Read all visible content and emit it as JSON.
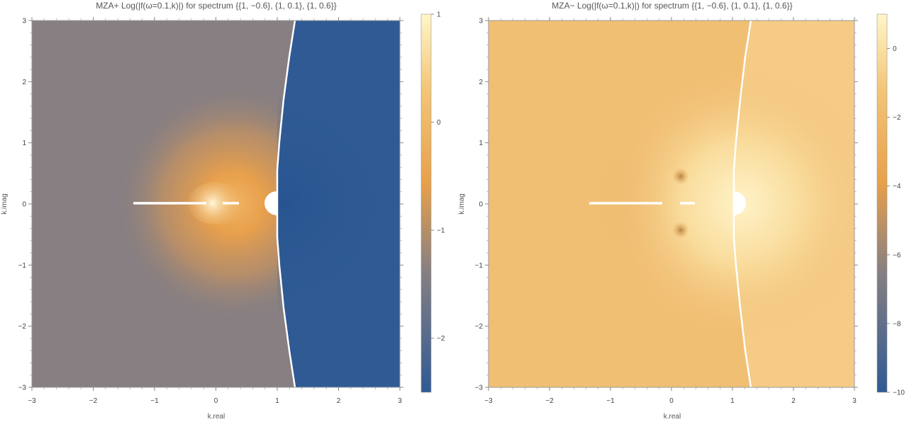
{
  "chart_data": [
    {
      "type": "heatmap",
      "title": "MZA+ Log(|f(ω=0.1,k)|) for spectrum {{1, −0.6}, {1, 0.1}, {1, 0.6}}",
      "xlabel": "k.real",
      "ylabel": "k.imag",
      "xlim": [
        -3,
        3
      ],
      "ylim": [
        -3,
        3
      ],
      "xticks": [
        "−3",
        "−2",
        "−1",
        "0",
        "1",
        "2",
        "3"
      ],
      "yticks": [
        "−3",
        "−2",
        "−1",
        "0",
        "1",
        "2",
        "3"
      ],
      "colorbar": {
        "range": [
          -2.5,
          1
        ],
        "ticks": [
          "−2",
          "−1",
          "0",
          "1"
        ],
        "tick_values": [
          -2,
          -1,
          0,
          1
        ]
      },
      "colors": {
        "low": "#2f5a94",
        "mid": "#e7a04a",
        "high": "#fff6c8",
        "neutral": "#877f82"
      }
    },
    {
      "type": "heatmap",
      "title": "MZA− Log(|f(ω=0.1,k)|) for spectrum {{1, −0.6}, {1, 0.1}, {1, 0.6}}",
      "xlabel": "k.real",
      "ylabel": "k.imag",
      "xlim": [
        -3,
        3
      ],
      "ylim": [
        -3,
        3
      ],
      "xticks": [
        "−3",
        "−2",
        "−1",
        "0",
        "1",
        "2",
        "3"
      ],
      "yticks": [
        "−3",
        "−2",
        "−1",
        "0",
        "1",
        "2",
        "3"
      ],
      "colorbar": {
        "range": [
          -10,
          1
        ],
        "ticks": [
          "−10",
          "−8",
          "−6",
          "−4",
          "−2",
          "0"
        ],
        "tick_values": [
          -10,
          -8,
          -6,
          -4,
          -2,
          0
        ]
      },
      "colors": {
        "low": "#2f5a94",
        "mid": "#e7a04a",
        "high": "#fff6c8",
        "field": "#f1bf74"
      }
    }
  ]
}
